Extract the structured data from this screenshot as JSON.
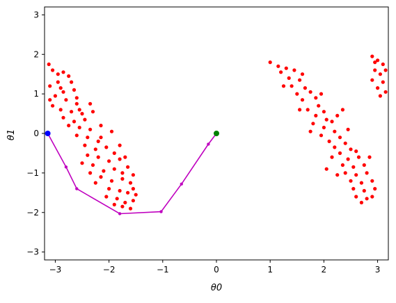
{
  "chart_data": {
    "type": "scatter",
    "title": "",
    "xlabel": "θ0",
    "ylabel": "θ1",
    "xlim": [
      -3.2,
      3.2
    ],
    "ylim": [
      -3.2,
      3.2
    ],
    "grid": false,
    "legend": "none",
    "xticks": [
      -3,
      -2,
      -1,
      0,
      1,
      2,
      3
    ],
    "yticks": [
      -3,
      -2,
      -1,
      0,
      1,
      2,
      3
    ],
    "xtick_labels": [
      "−3",
      "−2",
      "−1",
      "0",
      "1",
      "2",
      "3"
    ],
    "ytick_labels": [
      "−3",
      "−2",
      "−1",
      "0",
      "1",
      "2",
      "3"
    ],
    "colors": {
      "obstacle": "#ff0000",
      "path": "#bf00bf",
      "start": "#0000ff",
      "goal": "#008000"
    },
    "obstacle_points": [
      [
        -3.12,
        1.75
      ],
      [
        -3.05,
        1.6
      ],
      [
        -2.85,
        1.55
      ],
      [
        -2.75,
        1.45
      ],
      [
        -2.95,
        1.3
      ],
      [
        -3.1,
        1.2
      ],
      [
        -2.85,
        1.05
      ],
      [
        -2.65,
        1.1
      ],
      [
        -3.0,
        0.95
      ],
      [
        -2.8,
        0.85
      ],
      [
        -2.6,
        0.75
      ],
      [
        -3.05,
        0.7
      ],
      [
        -2.9,
        0.6
      ],
      [
        -2.7,
        0.55
      ],
      [
        -2.5,
        0.5
      ],
      [
        -2.85,
        0.4
      ],
      [
        -2.65,
        0.3
      ],
      [
        -2.45,
        0.35
      ],
      [
        -2.3,
        0.55
      ],
      [
        -2.55,
        0.15
      ],
      [
        -2.35,
        0.1
      ],
      [
        -2.15,
        0.2
      ],
      [
        -2.6,
        -0.05
      ],
      [
        -2.4,
        -0.1
      ],
      [
        -2.2,
        -0.2
      ],
      [
        -2.45,
        -0.3
      ],
      [
        -2.25,
        -0.4
      ],
      [
        -2.05,
        -0.35
      ],
      [
        -1.9,
        -0.5
      ],
      [
        -2.2,
        -0.6
      ],
      [
        -2.0,
        -0.7
      ],
      [
        -1.8,
        -0.65
      ],
      [
        -2.3,
        -0.8
      ],
      [
        -2.1,
        -0.95
      ],
      [
        -1.9,
        -0.9
      ],
      [
        -1.75,
        -1.0
      ],
      [
        -2.15,
        -1.1
      ],
      [
        -1.95,
        -1.2
      ],
      [
        -1.75,
        -1.15
      ],
      [
        -1.6,
        -1.25
      ],
      [
        -2.0,
        -1.4
      ],
      [
        -1.8,
        -1.45
      ],
      [
        -1.65,
        -1.5
      ],
      [
        -1.55,
        -1.4
      ],
      [
        -1.85,
        -1.65
      ],
      [
        -1.7,
        -1.75
      ],
      [
        -1.55,
        -1.7
      ],
      [
        -1.6,
        -1.9
      ],
      [
        -1.75,
        -1.85
      ],
      [
        -1.5,
        -1.55
      ],
      [
        -2.25,
        -1.25
      ],
      [
        -2.4,
        -0.55
      ],
      [
        -1.7,
        -0.6
      ],
      [
        -1.8,
        -0.3
      ],
      [
        -2.6,
        0.9
      ],
      [
        -2.95,
        1.5
      ],
      [
        -3.1,
        0.85
      ],
      [
        -2.7,
        1.3
      ],
      [
        -2.35,
        0.75
      ],
      [
        -1.95,
        0.05
      ],
      [
        -2.75,
        0.2
      ],
      [
        -2.5,
        -0.75
      ],
      [
        -1.65,
        -0.85
      ],
      [
        -2.05,
        -1.6
      ],
      [
        -1.9,
        -1.8
      ],
      [
        -2.9,
        1.15
      ],
      [
        -2.15,
        -0.1
      ],
      [
        -1.55,
        -1.05
      ],
      [
        -2.55,
        0.6
      ],
      [
        -2.35,
        -1.0
      ],
      [
        1.0,
        1.8
      ],
      [
        1.15,
        1.7
      ],
      [
        1.3,
        1.65
      ],
      [
        1.45,
        1.6
      ],
      [
        1.2,
        1.55
      ],
      [
        1.35,
        1.4
      ],
      [
        1.55,
        1.35
      ],
      [
        1.6,
        1.5
      ],
      [
        1.4,
        1.2
      ],
      [
        1.65,
        1.15
      ],
      [
        1.5,
        1.0
      ],
      [
        1.75,
        1.05
      ],
      [
        1.85,
        0.9
      ],
      [
        1.6,
        0.85
      ],
      [
        1.9,
        0.7
      ],
      [
        1.7,
        0.6
      ],
      [
        2.0,
        0.55
      ],
      [
        1.85,
        0.45
      ],
      [
        2.05,
        0.35
      ],
      [
        1.8,
        0.25
      ],
      [
        2.15,
        0.3
      ],
      [
        2.25,
        0.45
      ],
      [
        2.0,
        0.15
      ],
      [
        2.2,
        0.05
      ],
      [
        1.95,
        -0.05
      ],
      [
        2.3,
        -0.1
      ],
      [
        2.1,
        -0.2
      ],
      [
        2.4,
        -0.25
      ],
      [
        2.2,
        -0.35
      ],
      [
        2.5,
        -0.4
      ],
      [
        2.3,
        -0.5
      ],
      [
        2.6,
        -0.45
      ],
      [
        2.15,
        -0.6
      ],
      [
        2.45,
        -0.65
      ],
      [
        2.65,
        -0.6
      ],
      [
        2.35,
        -0.8
      ],
      [
        2.55,
        -0.85
      ],
      [
        2.75,
        -0.8
      ],
      [
        2.4,
        -1.0
      ],
      [
        2.6,
        -1.05
      ],
      [
        2.8,
        -1.0
      ],
      [
        2.5,
        -1.2
      ],
      [
        2.7,
        -1.25
      ],
      [
        2.9,
        -1.2
      ],
      [
        2.55,
        -1.4
      ],
      [
        2.75,
        -1.45
      ],
      [
        2.95,
        -1.4
      ],
      [
        2.6,
        -1.6
      ],
      [
        2.8,
        -1.65
      ],
      [
        2.7,
        -1.75
      ],
      [
        2.05,
        -0.9
      ],
      [
        1.75,
        0.05
      ],
      [
        1.55,
        0.6
      ],
      [
        2.35,
        0.6
      ],
      [
        2.85,
        -0.6
      ],
      [
        1.25,
        1.2
      ],
      [
        1.95,
        1.0
      ],
      [
        2.25,
        -1.05
      ],
      [
        2.9,
        -1.6
      ],
      [
        2.45,
        0.1
      ],
      [
        2.9,
        1.95
      ],
      [
        3.0,
        1.85
      ],
      [
        3.1,
        1.75
      ],
      [
        2.95,
        1.6
      ],
      [
        3.05,
        1.5
      ],
      [
        2.9,
        1.35
      ],
      [
        3.1,
        1.3
      ],
      [
        3.0,
        1.15
      ],
      [
        3.15,
        1.05
      ],
      [
        3.05,
        0.95
      ],
      [
        3.15,
        1.6
      ],
      [
        2.95,
        1.8
      ]
    ],
    "path": [
      [
        -3.14,
        0.0
      ],
      [
        -2.8,
        -0.85
      ],
      [
        -2.6,
        -1.4
      ],
      [
        -1.8,
        -2.03
      ],
      [
        -1.03,
        -1.98
      ],
      [
        -0.65,
        -1.28
      ],
      [
        -0.15,
        -0.27
      ],
      [
        0.0,
        0.0
      ]
    ],
    "start": [
      -3.14,
      0.0
    ],
    "goal": [
      0.0,
      0.0
    ]
  }
}
